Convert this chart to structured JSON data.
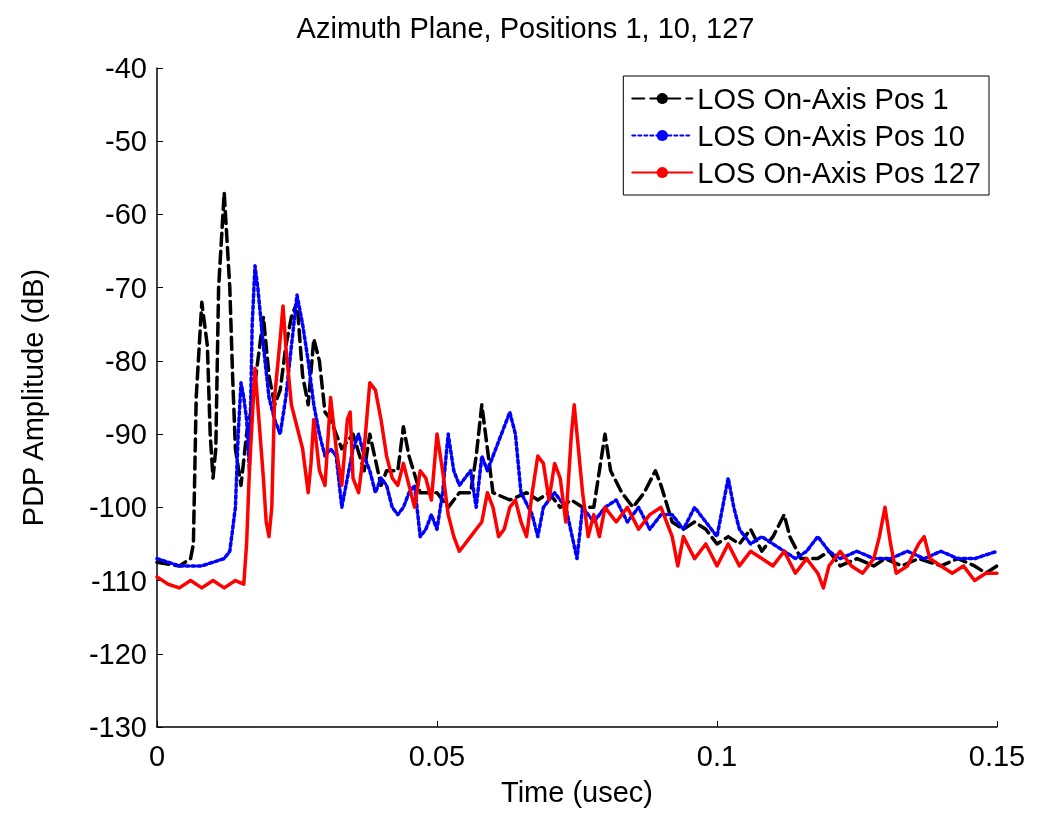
{
  "chart_data": {
    "type": "line",
    "title": "Azimuth Plane, Positions 1, 10, 127",
    "xlabel": "Time (usec)",
    "ylabel": "PDP Amplitude (dB)",
    "xlim": [
      0,
      0.15
    ],
    "xticks": [
      0,
      0.05,
      0.1,
      0.15
    ],
    "ylim": [
      -130,
      -40
    ],
    "yticks": [
      -130,
      -120,
      -110,
      -100,
      -90,
      -80,
      -70,
      -60,
      -50,
      -40
    ],
    "grid": false,
    "legend": "top right",
    "marker": "none",
    "series": [
      {
        "name": "LOS On-Axis Pos 1",
        "color": "#000000",
        "line_style": "dashed",
        "x": [
          0,
          0.004,
          0.006,
          0.0065,
          0.007,
          0.008,
          0.009,
          0.0095,
          0.01,
          0.0105,
          0.011,
          0.012,
          0.013,
          0.0135,
          0.014,
          0.015,
          0.016,
          0.017,
          0.018,
          0.019,
          0.02,
          0.021,
          0.022,
          0.023,
          0.024,
          0.025,
          0.026,
          0.027,
          0.028,
          0.029,
          0.03,
          0.031,
          0.032,
          0.033,
          0.035,
          0.037,
          0.038,
          0.04,
          0.041,
          0.043,
          0.044,
          0.045,
          0.047,
          0.05,
          0.052,
          0.054,
          0.056,
          0.057,
          0.058,
          0.059,
          0.06,
          0.063,
          0.066,
          0.068,
          0.07,
          0.072,
          0.074,
          0.076,
          0.078,
          0.079,
          0.08,
          0.081,
          0.083,
          0.085,
          0.087,
          0.089,
          0.09,
          0.092,
          0.094,
          0.096,
          0.098,
          0.1,
          0.102,
          0.104,
          0.106,
          0.108,
          0.11,
          0.112,
          0.113,
          0.115,
          0.118,
          0.12,
          0.122,
          0.125,
          0.128,
          0.13,
          0.133,
          0.136,
          0.14,
          0.143,
          0.146,
          0.148,
          0.15
        ],
        "values": [
          -107.5,
          -108,
          -107,
          -105,
          -85,
          -72,
          -78,
          -90,
          -96,
          -92,
          -70,
          -57,
          -70,
          -82,
          -92,
          -97,
          -90,
          -86,
          -80,
          -74,
          -82,
          -86,
          -84,
          -78,
          -74,
          -72,
          -82,
          -86,
          -77,
          -80,
          -87,
          -88,
          -90,
          -92,
          -90,
          -95,
          -90,
          -97,
          -95,
          -95,
          -89,
          -93,
          -98,
          -98,
          -100,
          -98,
          -98,
          -93,
          -86,
          -92,
          -98,
          -99,
          -98,
          -99,
          -98,
          -100,
          -99,
          -100,
          -100,
          -95,
          -90,
          -95,
          -98,
          -100,
          -98,
          -95,
          -97,
          -102,
          -103,
          -102,
          -103,
          -105,
          -104,
          -105,
          -103,
          -106,
          -104,
          -101,
          -104,
          -107,
          -107,
          -106,
          -108,
          -107,
          -108,
          -107,
          -108,
          -107,
          -108,
          -107,
          -108,
          -109,
          -108
        ]
      },
      {
        "name": "LOS On-Axis Pos 10",
        "color": "#0000ff",
        "line_style": "dotted",
        "x": [
          0,
          0.004,
          0.008,
          0.01,
          0.012,
          0.013,
          0.014,
          0.0145,
          0.015,
          0.0155,
          0.016,
          0.0165,
          0.017,
          0.0175,
          0.018,
          0.019,
          0.02,
          0.021,
          0.022,
          0.023,
          0.024,
          0.025,
          0.026,
          0.027,
          0.028,
          0.029,
          0.03,
          0.031,
          0.032,
          0.033,
          0.034,
          0.035,
          0.036,
          0.037,
          0.038,
          0.039,
          0.04,
          0.041,
          0.042,
          0.043,
          0.044,
          0.045,
          0.046,
          0.047,
          0.048,
          0.049,
          0.05,
          0.051,
          0.052,
          0.053,
          0.054,
          0.055,
          0.056,
          0.057,
          0.058,
          0.059,
          0.06,
          0.061,
          0.062,
          0.063,
          0.064,
          0.065,
          0.067,
          0.068,
          0.069,
          0.07,
          0.071,
          0.073,
          0.075,
          0.076,
          0.078,
          0.08,
          0.082,
          0.084,
          0.086,
          0.088,
          0.09,
          0.092,
          0.094,
          0.096,
          0.098,
          0.1,
          0.101,
          0.102,
          0.103,
          0.104,
          0.106,
          0.108,
          0.11,
          0.112,
          0.114,
          0.116,
          0.118,
          0.12,
          0.122,
          0.125,
          0.128,
          0.131,
          0.134,
          0.137,
          0.14,
          0.143,
          0.146,
          0.15
        ],
        "values": [
          -107,
          -108,
          -108,
          -107.5,
          -107,
          -106,
          -100,
          -90,
          -83,
          -85,
          -88,
          -95,
          -75,
          -67,
          -70,
          -78,
          -85,
          -88,
          -90,
          -85,
          -78,
          -71,
          -75,
          -80,
          -86,
          -90,
          -93,
          -92,
          -93,
          -100,
          -96,
          -92,
          -90,
          -93,
          -95,
          -98,
          -96,
          -97,
          -100,
          -101,
          -100,
          -98,
          -97,
          -104,
          -103,
          -101,
          -103,
          -98,
          -90,
          -95,
          -97,
          -96,
          -95,
          -100,
          -93,
          -95,
          -93,
          -91,
          -89,
          -87,
          -90,
          -98,
          -101,
          -104,
          -100,
          -99,
          -98,
          -100,
          -107,
          -100,
          -102,
          -100,
          -99,
          -102,
          -100,
          -103,
          -101,
          -101,
          -103,
          -100,
          -102,
          -104,
          -100,
          -96,
          -100,
          -103,
          -105,
          -104,
          -105,
          -106,
          -107,
          -106,
          -104,
          -106,
          -107,
          -106,
          -107,
          -107,
          -106,
          -107,
          -106,
          -107,
          -107,
          -106
        ]
      },
      {
        "name": "LOS On-Axis Pos 127",
        "color": "#ff0000",
        "line_style": "solid",
        "x": [
          0,
          0.002,
          0.004,
          0.006,
          0.008,
          0.01,
          0.012,
          0.014,
          0.0155,
          0.016,
          0.0165,
          0.017,
          0.0175,
          0.018,
          0.019,
          0.0195,
          0.02,
          0.0205,
          0.021,
          0.022,
          0.0225,
          0.023,
          0.024,
          0.025,
          0.026,
          0.027,
          0.0275,
          0.028,
          0.029,
          0.03,
          0.031,
          0.032,
          0.033,
          0.034,
          0.0345,
          0.035,
          0.036,
          0.037,
          0.038,
          0.039,
          0.04,
          0.041,
          0.042,
          0.043,
          0.044,
          0.045,
          0.046,
          0.047,
          0.048,
          0.049,
          0.05,
          0.051,
          0.052,
          0.053,
          0.054,
          0.055,
          0.056,
          0.057,
          0.058,
          0.059,
          0.06,
          0.061,
          0.062,
          0.063,
          0.064,
          0.065,
          0.066,
          0.067,
          0.068,
          0.069,
          0.07,
          0.071,
          0.072,
          0.073,
          0.074,
          0.0745,
          0.075,
          0.076,
          0.077,
          0.078,
          0.079,
          0.08,
          0.082,
          0.084,
          0.086,
          0.088,
          0.09,
          0.092,
          0.093,
          0.094,
          0.096,
          0.098,
          0.1,
          0.102,
          0.104,
          0.106,
          0.108,
          0.11,
          0.112,
          0.114,
          0.116,
          0.118,
          0.119,
          0.12,
          0.122,
          0.124,
          0.126,
          0.128,
          0.129,
          0.13,
          0.131,
          0.132,
          0.134,
          0.136,
          0.137,
          0.138,
          0.14,
          0.142,
          0.144,
          0.146,
          0.148,
          0.15
        ],
        "values": [
          -109.5,
          -110.5,
          -111,
          -110,
          -111,
          -110,
          -111,
          -110,
          -110.5,
          -105,
          -95,
          -88,
          -81,
          -86,
          -96,
          -102,
          -104,
          -100,
          -85,
          -77,
          -72.5,
          -78,
          -86,
          -89,
          -92,
          -98,
          -94,
          -88,
          -95,
          -97,
          -85,
          -92,
          -97,
          -88,
          -87,
          -96,
          -98,
          -92,
          -83,
          -84,
          -88,
          -93,
          -96,
          -97,
          -94,
          -97,
          -100,
          -95,
          -96,
          -99,
          -90,
          -95,
          -101,
          -104,
          -106,
          -105,
          -104,
          -103,
          -102,
          -98,
          -100,
          -104,
          -103,
          -100,
          -99,
          -102,
          -104,
          -98,
          -93,
          -94,
          -99,
          -94,
          -96,
          -102,
          -90,
          -86,
          -90,
          -98,
          -104,
          -101,
          -104,
          -100,
          -102,
          -100,
          -103,
          -101,
          -100,
          -104,
          -108,
          -104,
          -107,
          -105,
          -108,
          -105,
          -108,
          -106,
          -107,
          -108,
          -106,
          -109,
          -107,
          -109,
          -111,
          -108,
          -106,
          -108,
          -109,
          -107,
          -104,
          -100,
          -105,
          -109,
          -108,
          -105,
          -104,
          -107,
          -108,
          -109,
          -108,
          -110,
          -109,
          -109
        ]
      }
    ]
  }
}
